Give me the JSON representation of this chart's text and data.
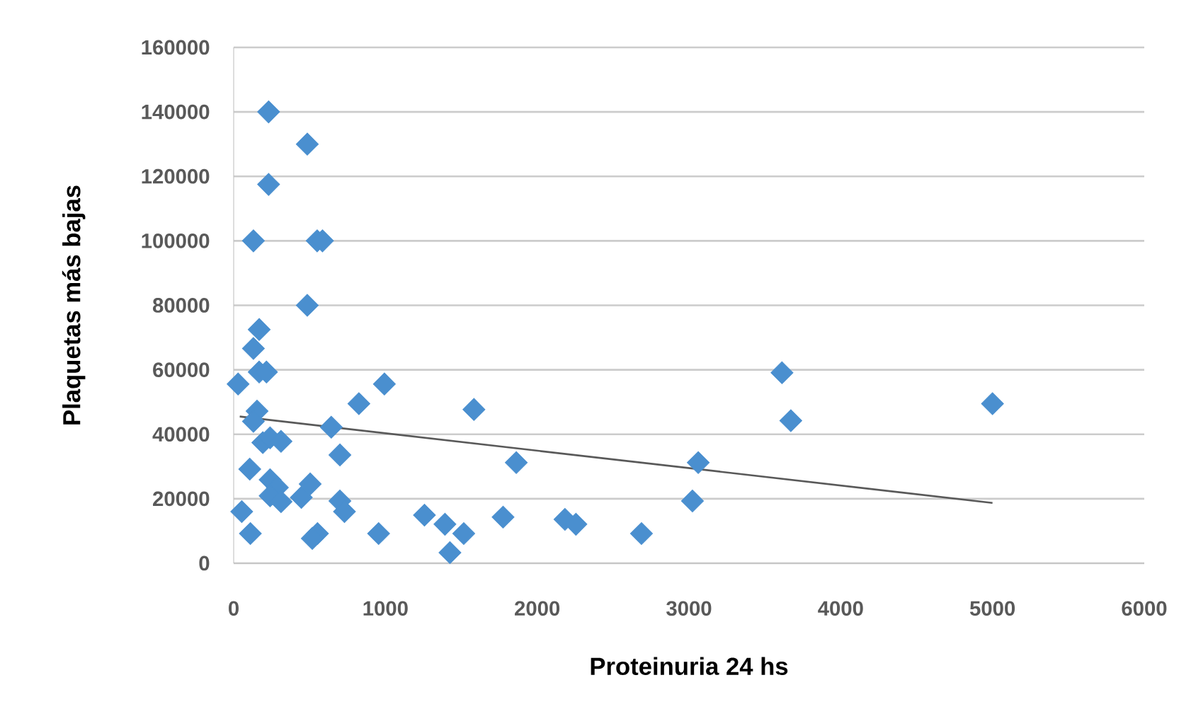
{
  "chart_data": {
    "type": "scatter",
    "xlabel": "Proteinuria 24 hs",
    "ylabel": "Plaquetas más bajas",
    "xlim": [
      0,
      6000
    ],
    "xticks": [
      0,
      1000,
      2000,
      3000,
      4000,
      5000,
      6000
    ],
    "ylim": [
      0,
      160000
    ],
    "yticks": [
      0,
      20000,
      40000,
      60000,
      80000,
      100000,
      120000,
      140000,
      160000
    ],
    "grid": "y",
    "marker": "diamond",
    "series": [
      {
        "color": "#4a8fcf",
        "x": [
          230,
          485,
          230,
          130,
          550,
          585,
          485,
          168,
          130,
          29,
          168,
          216,
          993,
          825,
          1583,
          3613,
          3671,
          5000,
          154,
          130,
          643,
          192,
          240,
          312,
          700,
          1862,
          3061,
          106,
          240,
          288,
          504,
          240,
          312,
          446,
          700,
          3023,
          53,
          730,
          1257,
          1775,
          1392,
          2183,
          2255,
          110,
          552,
          518,
          955,
          1516,
          2687,
          1425
        ],
        "values": [
          140000,
          130000,
          117500,
          100000,
          100000,
          100000,
          80000,
          72500,
          66600,
          55600,
          59300,
          59300,
          55600,
          49500,
          47700,
          59100,
          44200,
          49500,
          47200,
          44000,
          42200,
          37400,
          38900,
          37800,
          33600,
          31200,
          31200,
          29200,
          25900,
          23500,
          24600,
          20900,
          19100,
          20400,
          19300,
          19300,
          16000,
          16000,
          14900,
          14300,
          12100,
          13600,
          12100,
          9200,
          9200,
          7700,
          9200,
          9200,
          9200,
          3300
        ]
      },
      {
        "type": "line",
        "color": "#595959",
        "marker": "none",
        "x": [
          40,
          5000
        ],
        "values": [
          45500,
          18700
        ]
      }
    ]
  }
}
